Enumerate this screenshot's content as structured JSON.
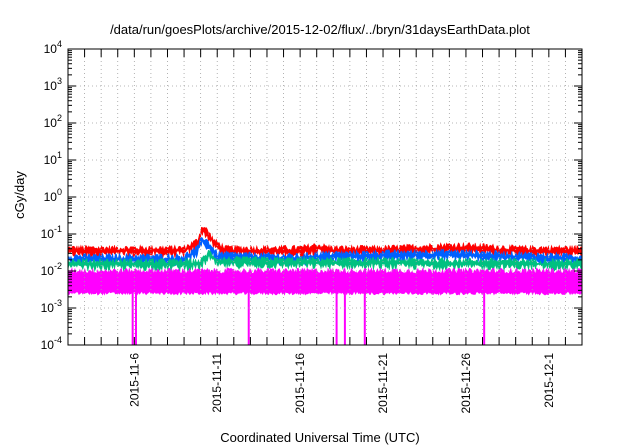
{
  "chart_data": {
    "type": "line",
    "title": "/data/run/goesPlots/archive/2015-12-02/flux/../bryn/31daysEarthData.plot",
    "xlabel": "Coordinated Universal Time (UTC)",
    "ylabel": "cGy/day",
    "yscale": "log",
    "ylim": [
      0.0001,
      10000
    ],
    "y_ticks": [
      {
        "value": 0.0001,
        "base": "10",
        "exp": "-4"
      },
      {
        "value": 0.001,
        "base": "10",
        "exp": "-3"
      },
      {
        "value": 0.01,
        "base": "10",
        "exp": "-2"
      },
      {
        "value": 0.1,
        "base": "10",
        "exp": "-1"
      },
      {
        "value": 1,
        "base": "10",
        "exp": "0"
      },
      {
        "value": 10,
        "base": "10",
        "exp": "1"
      },
      {
        "value": 100,
        "base": "10",
        "exp": "2"
      },
      {
        "value": 1000,
        "base": "10",
        "exp": "3"
      },
      {
        "value": 10000,
        "base": "10",
        "exp": "4"
      }
    ],
    "xlim": [
      "2015-11-02",
      "2015-12-03"
    ],
    "x_ticks": [
      "2015-11-6",
      "2015-11-11",
      "2015-11-16",
      "2015-11-21",
      "2015-11-26",
      "2015-12-1"
    ],
    "x_tick_dates": [
      "2015-11-06",
      "2015-11-11",
      "2015-11-16",
      "2015-11-21",
      "2015-11-26",
      "2015-12-01"
    ],
    "grid": true,
    "series": [
      {
        "color": "#ff0000",
        "base": 0.05,
        "x": [
          "2015-11-02",
          "2015-11-06",
          "2015-11-09",
          "2015-11-09.8",
          "2015-11-10.1",
          "2015-11-10.4",
          "2015-11-10.8",
          "2015-11-11.5",
          "2015-11-16",
          "2015-11-17",
          "2015-11-18",
          "2015-11-21",
          "2015-11-25",
          "2015-11-26",
          "2015-11-29",
          "2015-12-03"
        ],
        "y": [
          0.05,
          0.05,
          0.05,
          0.08,
          0.2,
          0.15,
          0.08,
          0.05,
          0.05,
          0.06,
          0.05,
          0.05,
          0.06,
          0.06,
          0.05,
          0.05
        ]
      },
      {
        "color": "#0060ff",
        "base": 0.03,
        "x": [
          "2015-11-02",
          "2015-11-09",
          "2015-11-09.8",
          "2015-11-10.1",
          "2015-11-10.5",
          "2015-11-11",
          "2015-11-16",
          "2015-11-17",
          "2015-11-25",
          "2015-12-03"
        ],
        "y": [
          0.03,
          0.03,
          0.05,
          0.1,
          0.07,
          0.035,
          0.03,
          0.035,
          0.04,
          0.03
        ]
      },
      {
        "color": "#00c080",
        "base": 0.022,
        "x": [
          "2015-11-02",
          "2015-11-10",
          "2015-11-10.5",
          "2015-11-11",
          "2015-12-03"
        ],
        "y": [
          0.022,
          0.022,
          0.04,
          0.025,
          0.022
        ]
      },
      {
        "color": "#ff00ff",
        "base": 0.012,
        "x": [
          "2015-11-02",
          "2015-12-03"
        ],
        "y": [
          0.012,
          0.012
        ],
        "dips": [
          "2015-11-05.9",
          "2015-11-06.1",
          "2015-11-12.9",
          "2015-11-18.2",
          "2015-11-18.7",
          "2015-11-19.9",
          "2015-11-27.1"
        ]
      }
    ]
  }
}
